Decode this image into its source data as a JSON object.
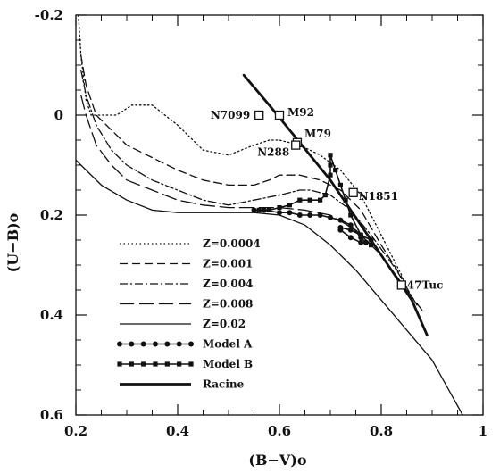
{
  "chart_data": {
    "type": "line",
    "xlabel": "(B−V)o",
    "ylabel": "(U−B)o",
    "xlim": [
      0.2,
      1.0
    ],
    "ylim": [
      -0.2,
      0.6
    ],
    "y_inverted": true,
    "grid": false,
    "legend_position": "lower-left",
    "x_ticks": [
      "0.2",
      "0.4",
      "0.6",
      "0.8",
      "1"
    ],
    "x_tick_values": [
      0.2,
      0.4,
      0.6,
      0.8,
      1.0
    ],
    "y_ticks": [
      "-0.2",
      "0",
      "0.2",
      "0.4",
      "0.6"
    ],
    "y_tick_values": [
      -0.2,
      0.0,
      0.2,
      0.4,
      0.6
    ],
    "series": [
      {
        "name": "Z=0.0004",
        "style": "dotted",
        "x": [
          0.205,
          0.21,
          0.22,
          0.23,
          0.25,
          0.28,
          0.31,
          0.35,
          0.4,
          0.45,
          0.5,
          0.55,
          0.58,
          0.6,
          0.64,
          0.68,
          0.72,
          0.76,
          0.8,
          0.84
        ],
        "y": [
          -0.2,
          -0.12,
          -0.03,
          0.0,
          0.0,
          0.0,
          -0.02,
          -0.02,
          0.02,
          0.07,
          0.08,
          0.06,
          0.05,
          0.05,
          0.06,
          0.08,
          0.11,
          0.16,
          0.24,
          0.32
        ]
      },
      {
        "name": "Z=0.001",
        "style": "dashed",
        "x": [
          0.21,
          0.22,
          0.24,
          0.27,
          0.3,
          0.34,
          0.4,
          0.45,
          0.5,
          0.55,
          0.58,
          0.6,
          0.64,
          0.68,
          0.72,
          0.76,
          0.8,
          0.85
        ],
        "y": [
          -0.12,
          -0.06,
          0.0,
          0.03,
          0.06,
          0.08,
          0.11,
          0.13,
          0.14,
          0.14,
          0.13,
          0.12,
          0.12,
          0.13,
          0.15,
          0.19,
          0.26,
          0.34
        ]
      },
      {
        "name": "Z=0.004",
        "style": "dashdot",
        "x": [
          0.21,
          0.22,
          0.24,
          0.27,
          0.3,
          0.35,
          0.4,
          0.45,
          0.5,
          0.55,
          0.6,
          0.64,
          0.66,
          0.7,
          0.74,
          0.78,
          0.83,
          0.87
        ],
        "y": [
          -0.09,
          -0.04,
          0.02,
          0.07,
          0.1,
          0.13,
          0.15,
          0.17,
          0.18,
          0.17,
          0.16,
          0.15,
          0.15,
          0.16,
          0.19,
          0.24,
          0.31,
          0.38
        ]
      },
      {
        "name": "Z=0.008",
        "style": "longdash",
        "x": [
          0.21,
          0.22,
          0.24,
          0.27,
          0.3,
          0.35,
          0.4,
          0.45,
          0.5,
          0.55,
          0.6,
          0.65,
          0.7,
          0.75,
          0.8,
          0.85,
          0.88
        ],
        "y": [
          -0.04,
          0.0,
          0.06,
          0.1,
          0.13,
          0.15,
          0.17,
          0.18,
          0.185,
          0.185,
          0.185,
          0.19,
          0.2,
          0.23,
          0.28,
          0.35,
          0.39
        ]
      },
      {
        "name": "Z=0.02",
        "style": "solid-thin",
        "x": [
          0.2,
          0.25,
          0.3,
          0.35,
          0.4,
          0.45,
          0.5,
          0.55,
          0.6,
          0.65,
          0.7,
          0.75,
          0.8,
          0.85,
          0.9,
          0.96
        ],
        "y": [
          0.09,
          0.14,
          0.17,
          0.19,
          0.195,
          0.195,
          0.195,
          0.195,
          0.2,
          0.22,
          0.26,
          0.31,
          0.37,
          0.43,
          0.49,
          0.6
        ]
      },
      {
        "name": "Model A",
        "style": "circles",
        "x": [
          0.55,
          0.57,
          0.6,
          0.62,
          0.64,
          0.66,
          0.68,
          0.7,
          0.72,
          0.74,
          0.76,
          0.77,
          0.76,
          0.74,
          0.72,
          0.72,
          0.74,
          0.76,
          0.78
        ],
        "y": [
          0.19,
          0.19,
          0.195,
          0.195,
          0.2,
          0.2,
          0.2,
          0.205,
          0.21,
          0.22,
          0.245,
          0.255,
          0.255,
          0.245,
          0.23,
          0.225,
          0.23,
          0.24,
          0.25
        ]
      },
      {
        "name": "Model B",
        "style": "squares",
        "x": [
          0.56,
          0.58,
          0.6,
          0.62,
          0.64,
          0.66,
          0.68,
          0.69,
          0.7,
          0.7,
          0.7,
          0.71,
          0.72,
          0.73,
          0.74,
          0.76,
          0.78
        ],
        "y": [
          0.19,
          0.19,
          0.185,
          0.18,
          0.17,
          0.17,
          0.17,
          0.16,
          0.12,
          0.1,
          0.08,
          0.11,
          0.14,
          0.17,
          0.2,
          0.24,
          0.26
        ]
      },
      {
        "name": "Racine",
        "style": "thick",
        "x": [
          0.53,
          0.58,
          0.62,
          0.66,
          0.7,
          0.74,
          0.78,
          0.82,
          0.86,
          0.89
        ],
        "y": [
          -0.08,
          -0.02,
          0.03,
          0.08,
          0.13,
          0.19,
          0.25,
          0.31,
          0.37,
          0.44
        ]
      }
    ],
    "clusters": [
      {
        "name": "N7099",
        "x": 0.56,
        "y": 0.0
      },
      {
        "name": "M92",
        "x": 0.6,
        "y": 0.0
      },
      {
        "name": "M79",
        "x": 0.635,
        "y": 0.055
      },
      {
        "name": "N288",
        "x": 0.632,
        "y": 0.06
      },
      {
        "name": "N1851",
        "x": 0.745,
        "y": 0.155
      },
      {
        "name": "47Tuc",
        "x": 0.84,
        "y": 0.34
      }
    ]
  }
}
